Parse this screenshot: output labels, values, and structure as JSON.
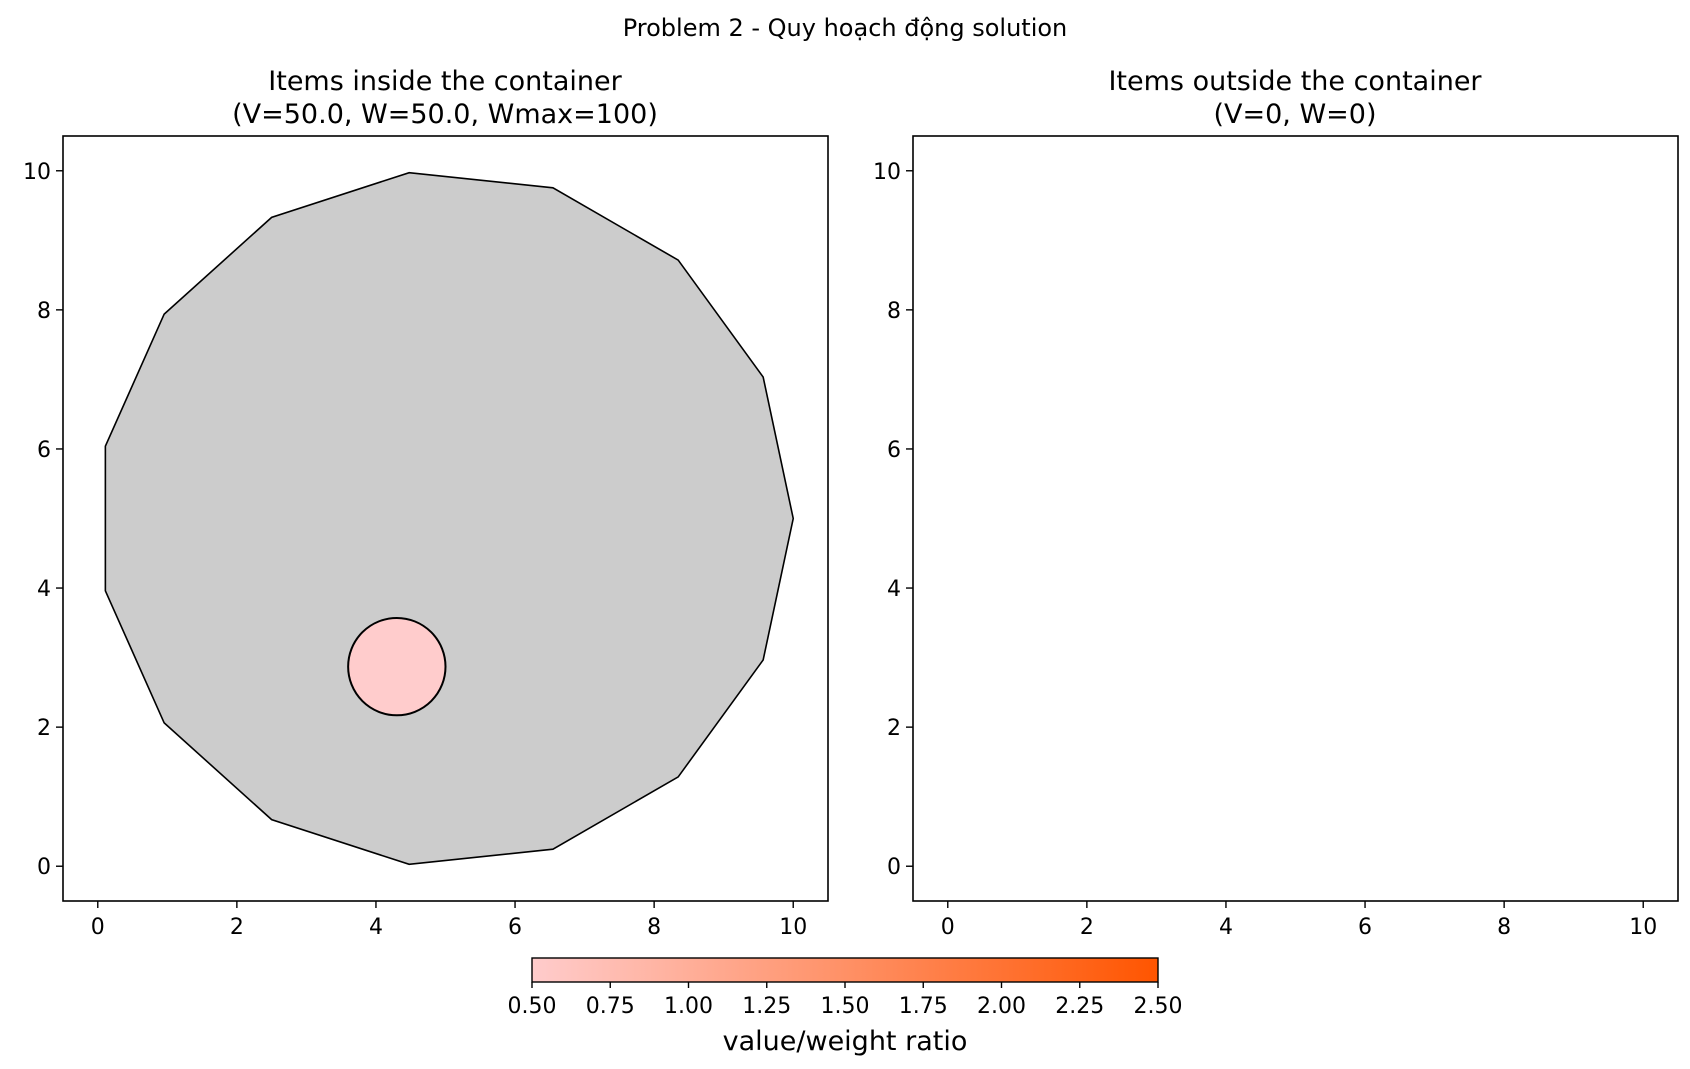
{
  "suptitle": "Problem 2 - Quy hoạch động solution",
  "chart_data": [
    {
      "type": "scatter",
      "panel": "inside",
      "title_line1": "Items inside the container",
      "title_line2": "(V=50.0, W=50.0, Wmax=100)",
      "xlim": [
        -0.5,
        10.5
      ],
      "ylim": [
        -0.5,
        10.5
      ],
      "xticks": [
        0,
        2,
        4,
        6,
        8,
        10
      ],
      "yticks": [
        0,
        2,
        4,
        6,
        8,
        10
      ],
      "grid": false,
      "container": {
        "shape": "regular polygon",
        "sides": 15,
        "center": [
          5,
          5
        ],
        "radius": 5,
        "fill": "#cccccc",
        "edge": "#000000"
      },
      "items": [
        {
          "shape": "circle",
          "center": [
            4.3,
            2.87
          ],
          "radius": 0.7,
          "ratio": 0.5,
          "fill": "#ffcccc",
          "edge": "#000000"
        }
      ]
    },
    {
      "type": "scatter",
      "panel": "outside",
      "title_line1": "Items outside the container",
      "title_line2": "(V=0, W=0)",
      "xlim": [
        -0.5,
        10.5
      ],
      "ylim": [
        -0.5,
        10.5
      ],
      "xticks": [
        0,
        2,
        4,
        6,
        8,
        10
      ],
      "yticks": [
        0,
        2,
        4,
        6,
        8,
        10
      ],
      "grid": false,
      "items": []
    }
  ],
  "colorbar": {
    "label": "value/weight ratio",
    "min": 0.5,
    "max": 2.5,
    "ticks": [
      "0.50",
      "0.75",
      "1.00",
      "1.25",
      "1.50",
      "1.75",
      "2.00",
      "2.25",
      "2.50"
    ],
    "color_low": "#ffcccc",
    "color_high": "#ff5500",
    "orientation": "horizontal",
    "location": "bottom"
  }
}
